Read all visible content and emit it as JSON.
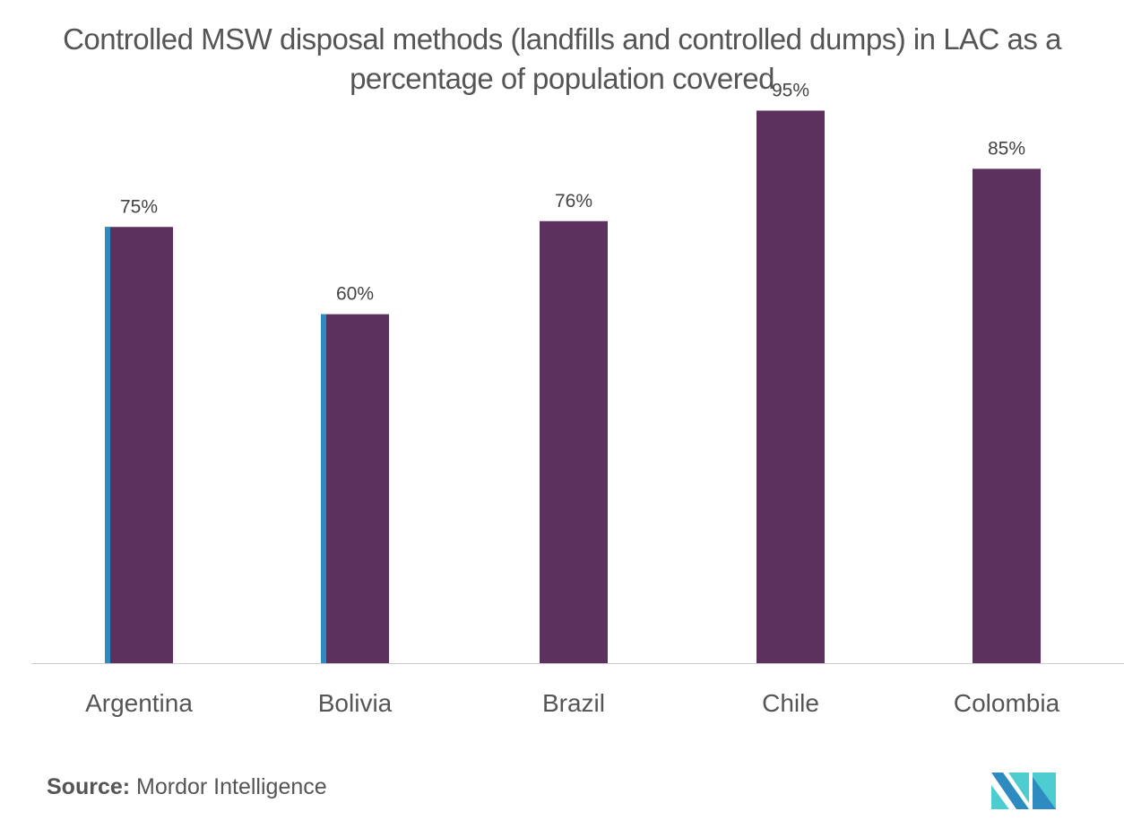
{
  "chart_data": {
    "type": "bar",
    "title": "Controlled MSW disposal methods (landfills and controlled dumps) in LAC as a percentage of population covered",
    "categories": [
      "Argentina",
      "Bolivia",
      "Brazil",
      "Chile",
      "Colombia"
    ],
    "values": [
      75,
      60,
      76,
      95,
      85
    ],
    "data_labels": [
      "75%",
      "60%",
      "76%",
      "95%",
      "85%"
    ],
    "unit": "%",
    "ylim": [
      0,
      100
    ],
    "grid": false,
    "bar_color": "#5c315e",
    "accent_color": "#2e8bc0"
  },
  "source": {
    "label": "Source:",
    "text": "Mordor Intelligence"
  }
}
